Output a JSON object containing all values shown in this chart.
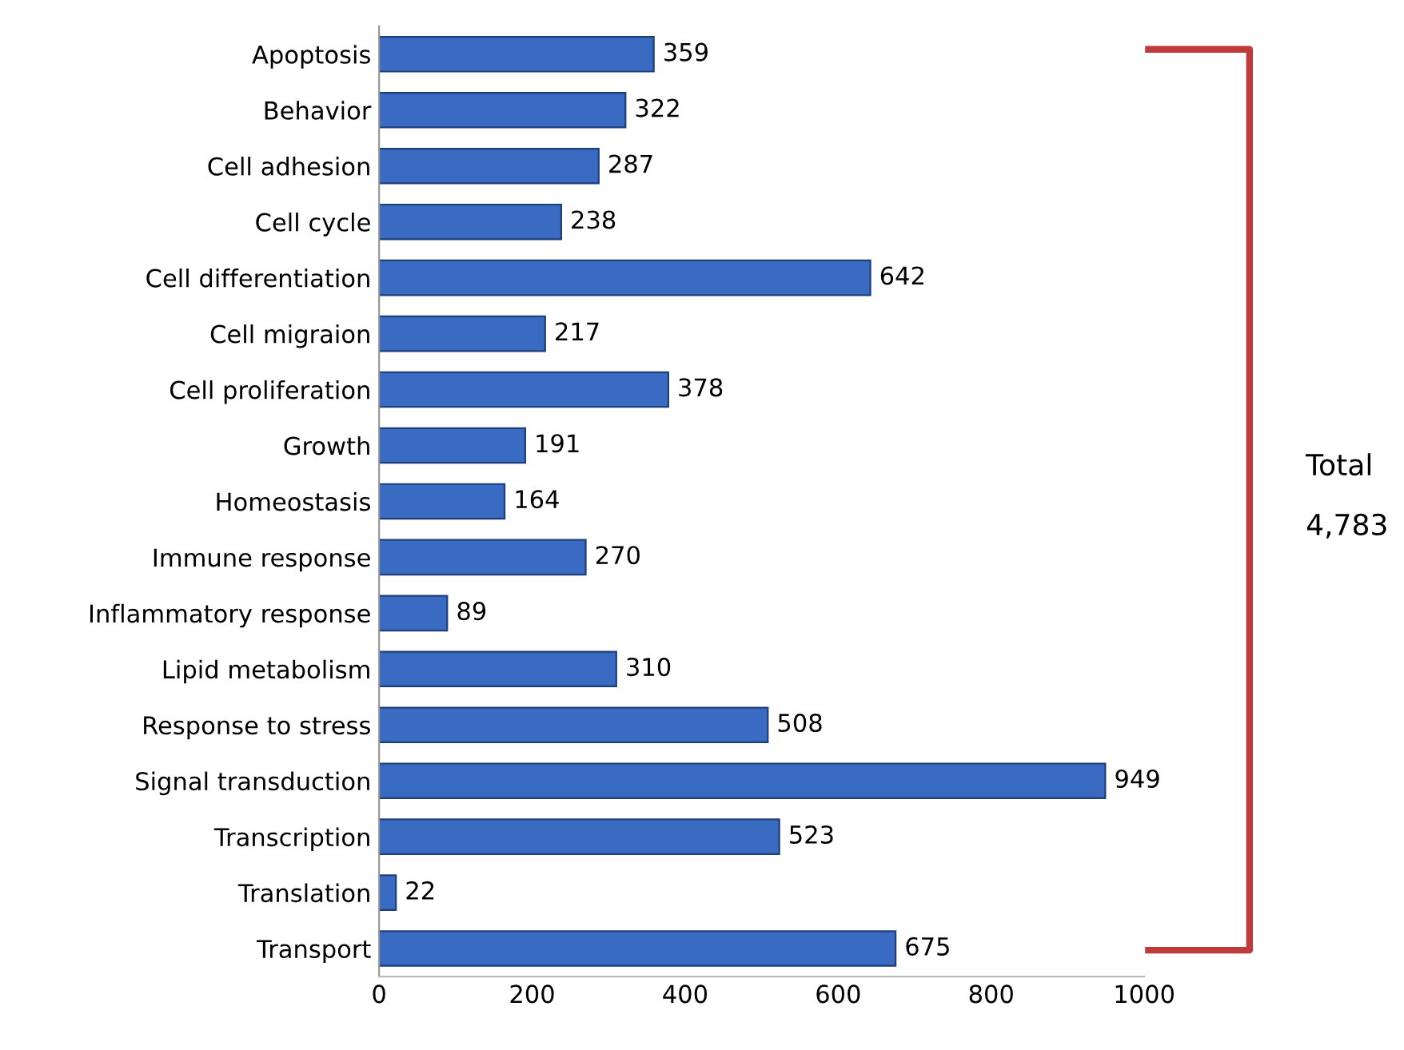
{
  "chart_data": {
    "type": "bar",
    "orientation": "horizontal",
    "categories": [
      "Apoptosis",
      "Behavior",
      "Cell adhesion",
      "Cell cycle",
      "Cell differentiation",
      "Cell migraion",
      "Cell proliferation",
      "Growth",
      "Homeostasis",
      "Immune response",
      "Inflammatory response",
      "Lipid metabolism",
      "Response to stress",
      "Signal transduction",
      "Transcription",
      "Translation",
      "Transport"
    ],
    "values": [
      359,
      322,
      287,
      238,
      642,
      217,
      378,
      191,
      164,
      270,
      89,
      310,
      508,
      949,
      523,
      22,
      675
    ],
    "color": "#3a6bc2",
    "xlim": [
      0,
      1000
    ],
    "xticks": [
      0,
      200,
      400,
      600,
      800,
      1000
    ],
    "data_labels": true,
    "grid": false,
    "legend": false,
    "annotations": [
      "Total",
      "4,783"
    ]
  }
}
